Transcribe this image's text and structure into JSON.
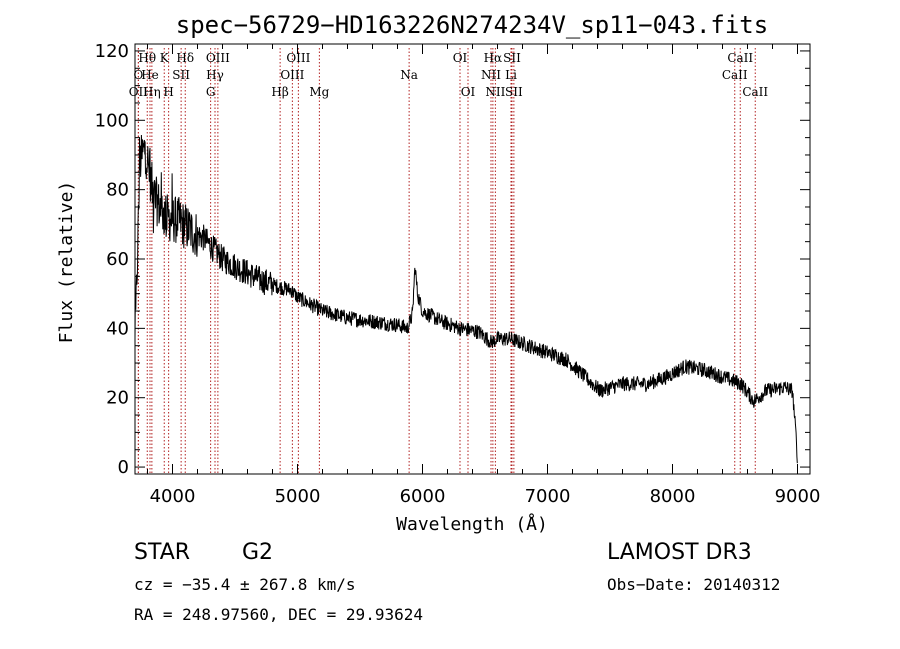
{
  "chart_data": {
    "type": "line",
    "title": "spec−56729−HD163226N274234V_sp11−043.fits",
    "xlabel": "Wavelength (Å)",
    "ylabel": "Flux (relative)",
    "xlim": [
      3700,
      9100
    ],
    "ylim": [
      -2,
      122
    ],
    "xticks": [
      4000,
      5000,
      6000,
      7000,
      8000,
      9000
    ],
    "yticks": [
      0,
      20,
      40,
      60,
      80,
      100,
      120
    ],
    "continuum": [
      [
        3700,
        35
      ],
      [
        3740,
        88
      ],
      [
        3780,
        92
      ],
      [
        3850,
        78
      ],
      [
        3950,
        72
      ],
      [
        4050,
        71
      ],
      [
        4150,
        68
      ],
      [
        4250,
        66
      ],
      [
        4400,
        60
      ],
      [
        4550,
        57
      ],
      [
        4700,
        54
      ],
      [
        4850,
        52
      ],
      [
        4950,
        51
      ],
      [
        5000,
        49
      ],
      [
        5100,
        47
      ],
      [
        5200,
        45
      ],
      [
        5400,
        43
      ],
      [
        5600,
        42
      ],
      [
        5800,
        41
      ],
      [
        5880,
        40
      ],
      [
        5920,
        44
      ],
      [
        5940,
        58
      ],
      [
        5960,
        50
      ],
      [
        6000,
        45
      ],
      [
        6150,
        42
      ],
      [
        6300,
        40
      ],
      [
        6450,
        39
      ],
      [
        6550,
        36
      ],
      [
        6600,
        37
      ],
      [
        6700,
        37
      ],
      [
        6850,
        35
      ],
      [
        7000,
        33
      ],
      [
        7150,
        31
      ],
      [
        7300,
        26
      ],
      [
        7420,
        22
      ],
      [
        7600,
        24
      ],
      [
        7800,
        24
      ],
      [
        7950,
        26
      ],
      [
        8100,
        29
      ],
      [
        8250,
        28
      ],
      [
        8400,
        26
      ],
      [
        8550,
        24
      ],
      [
        8650,
        19
      ],
      [
        8750,
        22
      ],
      [
        8900,
        23
      ],
      [
        8960,
        22
      ],
      [
        8990,
        8
      ],
      [
        9000,
        2
      ]
    ],
    "noise_amplitude": 2.2,
    "lines": [
      {
        "name": "Hθ",
        "wave": 3798,
        "row": "top"
      },
      {
        "name": "O",
        "wave": 3727,
        "row": "mid"
      },
      {
        "name": "OII",
        "wave": 3727,
        "row": "low"
      },
      {
        "name": "He",
        "wave": 3820,
        "row": "mid"
      },
      {
        "name": "Hη",
        "wave": 3835,
        "row": "low"
      },
      {
        "name": "K",
        "wave": 3934,
        "row": "top"
      },
      {
        "name": "H",
        "wave": 3969,
        "row": "low"
      },
      {
        "name": "SII",
        "wave": 4069,
        "row": "mid"
      },
      {
        "name": "Hδ",
        "wave": 4102,
        "row": "top"
      },
      {
        "name": "OIII",
        "wave": 4363,
        "row": "top"
      },
      {
        "name": "Hγ",
        "wave": 4340,
        "row": "mid"
      },
      {
        "name": "G",
        "wave": 4305,
        "row": "low"
      },
      {
        "name": "Hβ",
        "wave": 4861,
        "row": "low"
      },
      {
        "name": "OIII",
        "wave": 5007,
        "row": "top"
      },
      {
        "name": "OIII",
        "wave": 4959,
        "row": "mid"
      },
      {
        "name": "Mg",
        "wave": 5175,
        "row": "low"
      },
      {
        "name": "Na",
        "wave": 5893,
        "row": "mid"
      },
      {
        "name": "OI",
        "wave": 6300,
        "row": "top"
      },
      {
        "name": "OI",
        "wave": 6364,
        "row": "low"
      },
      {
        "name": "Hα",
        "wave": 6563,
        "row": "top"
      },
      {
        "name": "NII",
        "wave": 6548,
        "row": "mid"
      },
      {
        "name": "NII",
        "wave": 6583,
        "row": "low"
      },
      {
        "name": "SII",
        "wave": 6716,
        "row": "top"
      },
      {
        "name": "Li",
        "wave": 6708,
        "row": "mid"
      },
      {
        "name": "SII",
        "wave": 6731,
        "row": "low"
      },
      {
        "name": "CaII",
        "wave": 8542,
        "row": "top"
      },
      {
        "name": "CaII",
        "wave": 8498,
        "row": "mid"
      },
      {
        "name": "CaII",
        "wave": 8662,
        "row": "low"
      }
    ],
    "colors": {
      "spectrum": "#000000",
      "lines": "#b22222",
      "axes": "#000000"
    }
  },
  "info": {
    "class": "STAR",
    "subclass": "G2",
    "survey": "LAMOST DR3",
    "cz": "cz = −35.4 ± 267.8 km/s",
    "obsdate": "Obs−Date: 20140312",
    "radec": "RA = 248.97560, DEC =  29.93624"
  }
}
